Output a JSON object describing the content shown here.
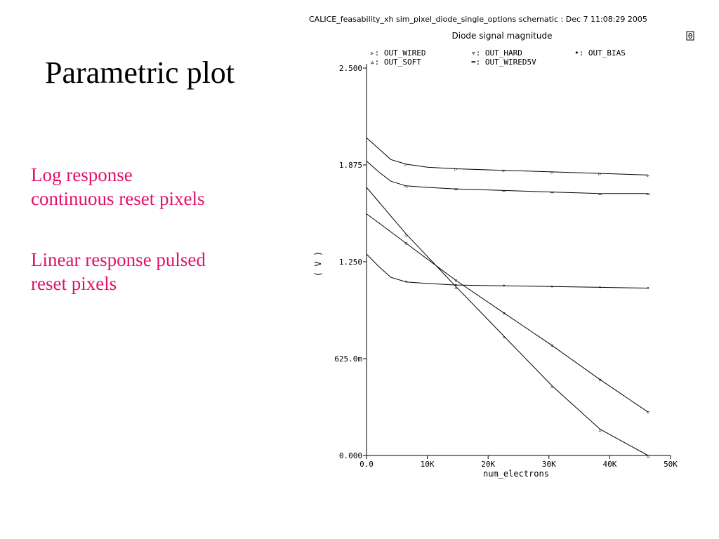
{
  "slide": {
    "title": "Parametric plot",
    "notes": [
      {
        "lines": [
          "Log response",
          "continuous reset pixels"
        ]
      },
      {
        "lines": [
          "Linear response pulsed",
          "reset pixels"
        ]
      }
    ],
    "note_color": "#e3106b"
  },
  "chart_data": {
    "type": "line",
    "header": "CALICE_feasability_xh sim_pixel_diode_single_options schematic : Dec  7 11:08:29 2005",
    "title": "Diode signal magnitude",
    "corner_mark": "0",
    "xlabel": "num_electrons",
    "ylabel": "( V )",
    "xlim": [
      0,
      50000
    ],
    "ylim": [
      0,
      2.5
    ],
    "x_ticks": [
      "0.0",
      "10K",
      "20K",
      "30K",
      "40K",
      "50K"
    ],
    "y_ticks": [
      "0.000",
      "625.0m",
      "1.250",
      "1.875",
      "2.500"
    ],
    "legend_position": "top",
    "marker_x": [
      6500,
      14700,
      22600,
      30500,
      38400,
      46300
    ],
    "series": [
      {
        "name": "OUT_WIRED",
        "symbol": "▹",
        "x": [
          0,
          2000,
          4000,
          6500,
          10000,
          14700,
          22600,
          30500,
          38400,
          46300
        ],
        "y": [
          2.05,
          1.98,
          1.91,
          1.88,
          1.86,
          1.85,
          1.84,
          1.83,
          1.82,
          1.81
        ]
      },
      {
        "name": "OUT_HARD",
        "symbol": "▿",
        "x": [
          0,
          6500,
          14700,
          22600,
          30500,
          38400,
          46300
        ],
        "y": [
          1.56,
          1.37,
          1.13,
          0.92,
          0.71,
          0.49,
          0.28
        ]
      },
      {
        "name": "OUT_BIAS",
        "symbol": "•",
        "x": [
          0,
          2000,
          4000,
          6500,
          10000,
          14700,
          22600,
          30500,
          38400,
          46300
        ],
        "y": [
          1.3,
          1.22,
          1.15,
          1.12,
          1.11,
          1.1,
          1.095,
          1.09,
          1.085,
          1.08
        ]
      },
      {
        "name": "OUT_SOFT",
        "symbol": "▵",
        "x": [
          0,
          6500,
          14700,
          22600,
          30500,
          38400,
          46300
        ],
        "y": [
          1.73,
          1.43,
          1.09,
          0.77,
          0.45,
          0.17,
          0.0
        ]
      },
      {
        "name": "OUT_WIRED5V",
        "symbol": "=",
        "x": [
          0,
          2000,
          4000,
          6500,
          10000,
          14700,
          22600,
          30500,
          38400,
          46300
        ],
        "y": [
          1.9,
          1.83,
          1.77,
          1.74,
          1.73,
          1.72,
          1.71,
          1.7,
          1.69,
          1.69
        ]
      }
    ]
  }
}
